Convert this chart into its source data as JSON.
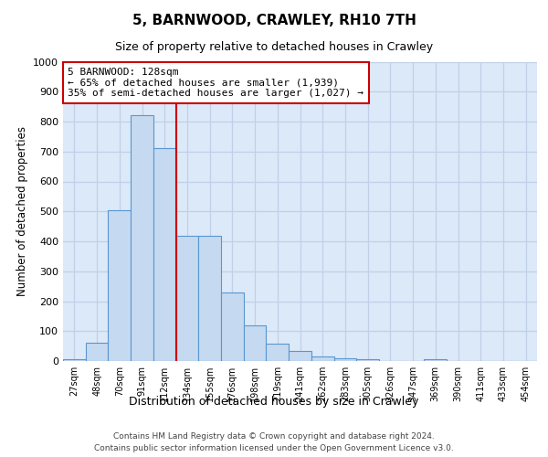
{
  "title": "5, BARNWOOD, CRAWLEY, RH10 7TH",
  "subtitle": "Size of property relative to detached houses in Crawley",
  "xlabel": "Distribution of detached houses by size in Crawley",
  "ylabel": "Number of detached properties",
  "categories": [
    "27sqm",
    "48sqm",
    "70sqm",
    "91sqm",
    "112sqm",
    "134sqm",
    "155sqm",
    "176sqm",
    "198sqm",
    "219sqm",
    "241sqm",
    "262sqm",
    "283sqm",
    "305sqm",
    "326sqm",
    "347sqm",
    "369sqm",
    "390sqm",
    "411sqm",
    "433sqm",
    "454sqm"
  ],
  "bar_heights": [
    7,
    62,
    505,
    820,
    710,
    418,
    418,
    230,
    120,
    57,
    35,
    14,
    8,
    5,
    0,
    0,
    5,
    0,
    0,
    0,
    0
  ],
  "bar_color": "#c5d9f0",
  "bar_edge_color": "#5a96d0",
  "vline_x_index": 4.5,
  "vline_color": "#cc0000",
  "annotation_line1": "5 BARNWOOD: 128sqm",
  "annotation_line2": "← 65% of detached houses are smaller (1,939)",
  "annotation_line3": "35% of semi-detached houses are larger (1,027) →",
  "ann_box_edge_color": "#cc0000",
  "ylim_max": 1000,
  "yticks": [
    0,
    100,
    200,
    300,
    400,
    500,
    600,
    700,
    800,
    900,
    1000
  ],
  "bg_color": "#dce9f8",
  "grid_color": "#c0d0e8",
  "footer1": "Contains HM Land Registry data © Crown copyright and database right 2024.",
  "footer2": "Contains public sector information licensed under the Open Government Licence v3.0."
}
